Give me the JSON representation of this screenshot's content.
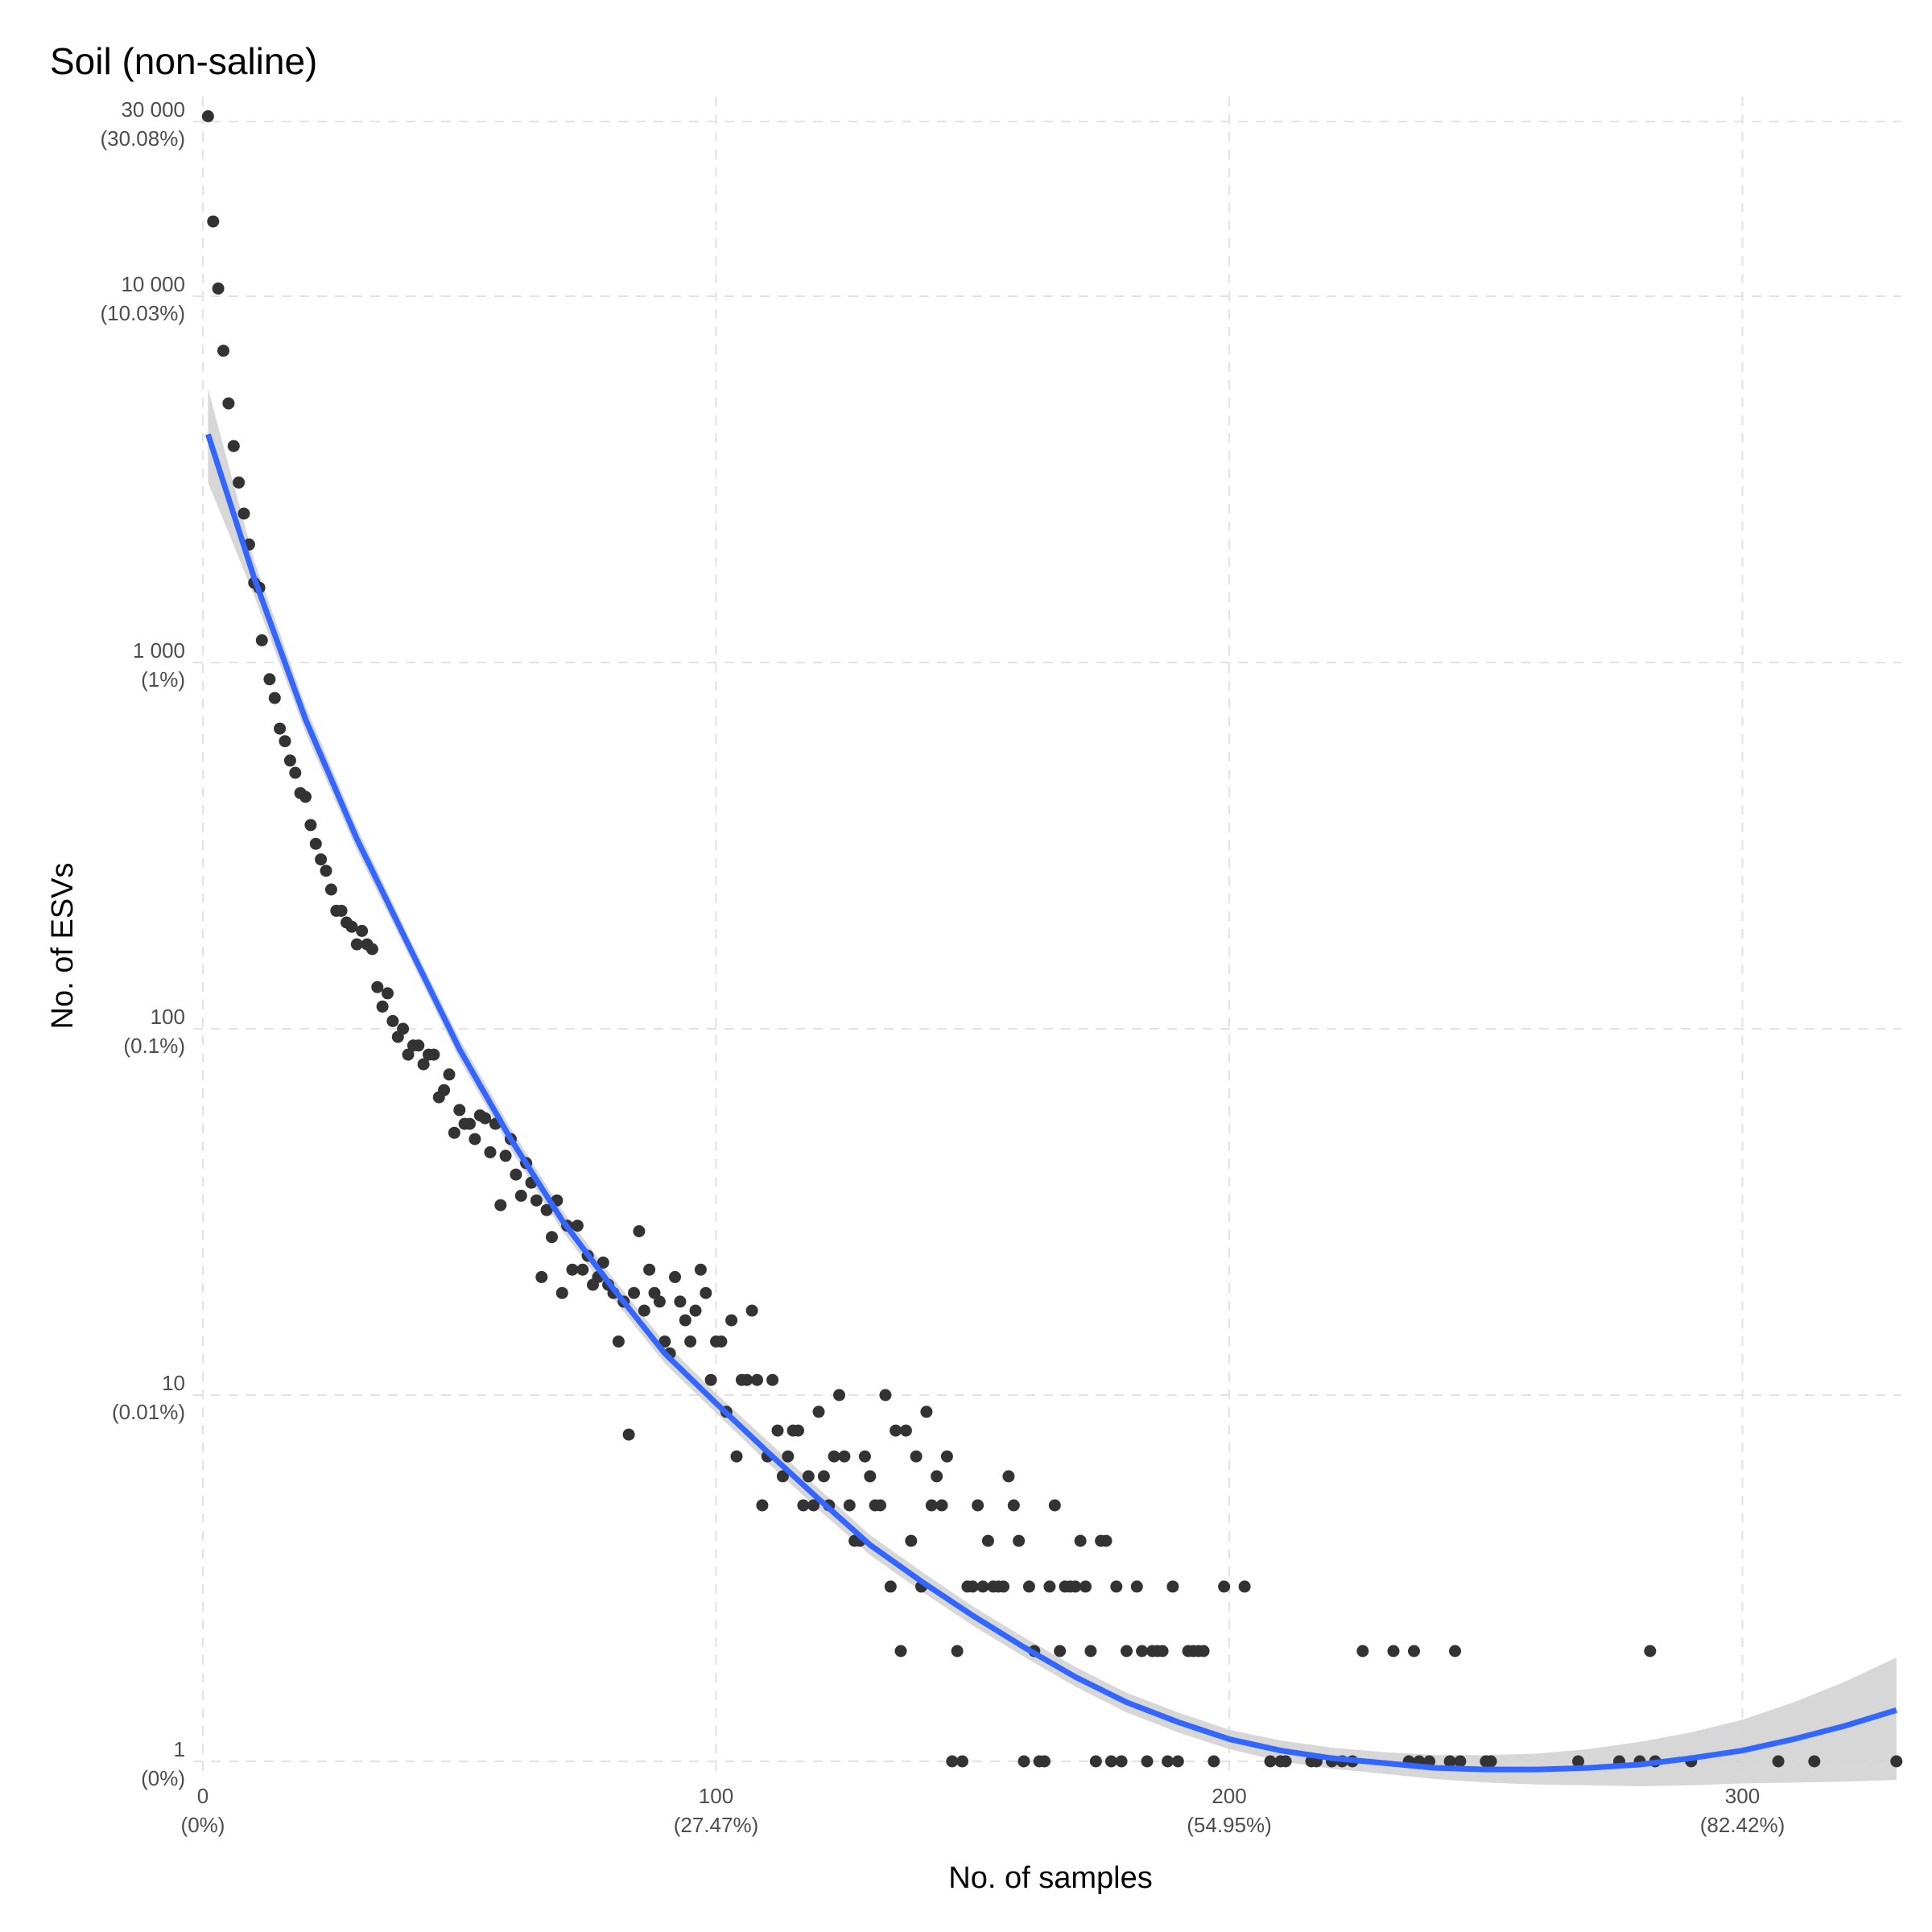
{
  "chart_data": {
    "type": "scatter",
    "title": "Soil (non-saline)",
    "xlabel": "No. of samples",
    "ylabel": "No. of ESVs",
    "y_scale": "log",
    "xlim": [
      0,
      330
    ],
    "ylim": [
      0.8,
      35000
    ],
    "grid": true,
    "colors": {
      "points": "#333333",
      "fit_line": "#3366ff",
      "confidence_band": "#d3d3d3",
      "grid": "#e2e2e2",
      "tick_text": "#4d4d4d",
      "title_text": "#000000"
    },
    "x_ticks": [
      {
        "value": 0,
        "label": "0",
        "sublabel": "(0%)"
      },
      {
        "value": 100,
        "label": "100",
        "sublabel": "(27.47%)"
      },
      {
        "value": 200,
        "label": "200",
        "sublabel": "(54.95%)"
      },
      {
        "value": 300,
        "label": "300",
        "sublabel": "(82.42%)"
      }
    ],
    "y_ticks": [
      {
        "value": 1,
        "label": "1",
        "sublabel": "(0%)"
      },
      {
        "value": 10,
        "label": "10",
        "sublabel": "(0.01%)"
      },
      {
        "value": 100,
        "label": "100",
        "sublabel": "(0.1%)"
      },
      {
        "value": 1000,
        "label": "1 000",
        "sublabel": "(1%)"
      },
      {
        "value": 10000,
        "label": "10 000",
        "sublabel": "(10.03%)"
      },
      {
        "value": 30000,
        "label": "30 000",
        "sublabel": "(30.08%)"
      }
    ],
    "points": [
      [
        1,
        31000
      ],
      [
        2,
        16000
      ],
      [
        3,
        10500
      ],
      [
        4,
        7100
      ],
      [
        5,
        5100
      ],
      [
        6,
        3900
      ],
      [
        7,
        3100
      ],
      [
        8,
        2550
      ],
      [
        9,
        2100
      ],
      [
        10,
        1650
      ],
      [
        11,
        1600
      ],
      [
        11.5,
        1150
      ],
      [
        13,
        900
      ],
      [
        14,
        800
      ],
      [
        15,
        660
      ],
      [
        16,
        610
      ],
      [
        17,
        540
      ],
      [
        18,
        500
      ],
      [
        19,
        440
      ],
      [
        20,
        430
      ],
      [
        21,
        360
      ],
      [
        22,
        320
      ],
      [
        23,
        290
      ],
      [
        24,
        270
      ],
      [
        25,
        240
      ],
      [
        26,
        210
      ],
      [
        27,
        210
      ],
      [
        28,
        195
      ],
      [
        29,
        190
      ],
      [
        30,
        170
      ],
      [
        31,
        185
      ],
      [
        32,
        170
      ],
      [
        33,
        165
      ],
      [
        34,
        130
      ],
      [
        35,
        115
      ],
      [
        36,
        125
      ],
      [
        37,
        105
      ],
      [
        38,
        95
      ],
      [
        39,
        100
      ],
      [
        40,
        85
      ],
      [
        41,
        90
      ],
      [
        42,
        90
      ],
      [
        43,
        80
      ],
      [
        44,
        85
      ],
      [
        45,
        85
      ],
      [
        46,
        65
      ],
      [
        47,
        68
      ],
      [
        48,
        75
      ],
      [
        49,
        52
      ],
      [
        50,
        60
      ],
      [
        51,
        55
      ],
      [
        52,
        55
      ],
      [
        53,
        50
      ],
      [
        54,
        58
      ],
      [
        55,
        57
      ],
      [
        56,
        46
      ],
      [
        57,
        55
      ],
      [
        58,
        33
      ],
      [
        59,
        45
      ],
      [
        60,
        50
      ],
      [
        61,
        40
      ],
      [
        62,
        35
      ],
      [
        63,
        43
      ],
      [
        64,
        38
      ],
      [
        65,
        34
      ],
      [
        66,
        21
      ],
      [
        67,
        32
      ],
      [
        68,
        27
      ],
      [
        69,
        34
      ],
      [
        70,
        19
      ],
      [
        71,
        29
      ],
      [
        72,
        22
      ],
      [
        73,
        29
      ],
      [
        74,
        22
      ],
      [
        75,
        24
      ],
      [
        76,
        20
      ],
      [
        77,
        21
      ],
      [
        78,
        23
      ],
      [
        79,
        20
      ],
      [
        80,
        19
      ],
      [
        81,
        14
      ],
      [
        82,
        18
      ],
      [
        83,
        7.8
      ],
      [
        84,
        19
      ],
      [
        85,
        28
      ],
      [
        86,
        17
      ],
      [
        87,
        22
      ],
      [
        88,
        19
      ],
      [
        89,
        18
      ],
      [
        90,
        14
      ],
      [
        91,
        13
      ],
      [
        92,
        21
      ],
      [
        93,
        18
      ],
      [
        94,
        16
      ],
      [
        95,
        14
      ],
      [
        96,
        17
      ],
      [
        97,
        22
      ],
      [
        98,
        19
      ],
      [
        99,
        11
      ],
      [
        100,
        14
      ],
      [
        101,
        14
      ],
      [
        102,
        9
      ],
      [
        103,
        16
      ],
      [
        104,
        6.8
      ],
      [
        105,
        11
      ],
      [
        106,
        11
      ],
      [
        107,
        17
      ],
      [
        108,
        11
      ],
      [
        109,
        5
      ],
      [
        110,
        6.8
      ],
      [
        111,
        11
      ],
      [
        112,
        8
      ],
      [
        113,
        6
      ],
      [
        114,
        6.8
      ],
      [
        115,
        8
      ],
      [
        116,
        8
      ],
      [
        117,
        5
      ],
      [
        118,
        6
      ],
      [
        119,
        5
      ],
      [
        120,
        9
      ],
      [
        121,
        6
      ],
      [
        122,
        5
      ],
      [
        123,
        6.8
      ],
      [
        124,
        10
      ],
      [
        125,
        6.8
      ],
      [
        126,
        5
      ],
      [
        127,
        4
      ],
      [
        128,
        4
      ],
      [
        129,
        6.8
      ],
      [
        130,
        6
      ],
      [
        131,
        5
      ],
      [
        132,
        5
      ],
      [
        133,
        10
      ],
      [
        134,
        3
      ],
      [
        135,
        8
      ],
      [
        136,
        2
      ],
      [
        137,
        8
      ],
      [
        138,
        4
      ],
      [
        139,
        6.8
      ],
      [
        140,
        3
      ],
      [
        141,
        9
      ],
      [
        142,
        5
      ],
      [
        143,
        6
      ],
      [
        144,
        5
      ],
      [
        145,
        6.8
      ],
      [
        146,
        1
      ],
      [
        147,
        2
      ],
      [
        148,
        1
      ],
      [
        149,
        3
      ],
      [
        150,
        3
      ],
      [
        151,
        5
      ],
      [
        152,
        3
      ],
      [
        153,
        4
      ],
      [
        154,
        3
      ],
      [
        155,
        3
      ],
      [
        156,
        3
      ],
      [
        157,
        6
      ],
      [
        158,
        5
      ],
      [
        159,
        4
      ],
      [
        160,
        1
      ],
      [
        161,
        3
      ],
      [
        162,
        2
      ],
      [
        163,
        1
      ],
      [
        164,
        1
      ],
      [
        165,
        3
      ],
      [
        166,
        5
      ],
      [
        167,
        2
      ],
      [
        168,
        3
      ],
      [
        169,
        3
      ],
      [
        170,
        3
      ],
      [
        171,
        4
      ],
      [
        172,
        3
      ],
      [
        173,
        2
      ],
      [
        174,
        1
      ],
      [
        175,
        4
      ],
      [
        176,
        4
      ],
      [
        177,
        1
      ],
      [
        178,
        3
      ],
      [
        179,
        1
      ],
      [
        180,
        2
      ],
      [
        182,
        3
      ],
      [
        183,
        2
      ],
      [
        184,
        1
      ],
      [
        185,
        2
      ],
      [
        186,
        2
      ],
      [
        187,
        2
      ],
      [
        188,
        1
      ],
      [
        189,
        3
      ],
      [
        190,
        1
      ],
      [
        192,
        2
      ],
      [
        193,
        2
      ],
      [
        194,
        2
      ],
      [
        195,
        2
      ],
      [
        197,
        1
      ],
      [
        199,
        3
      ],
      [
        203,
        3
      ],
      [
        208,
        1
      ],
      [
        210,
        1
      ],
      [
        211,
        1
      ],
      [
        216,
        1
      ],
      [
        217,
        1
      ],
      [
        220,
        1
      ],
      [
        222,
        1
      ],
      [
        224,
        1
      ],
      [
        226,
        2
      ],
      [
        232,
        2
      ],
      [
        235,
        1
      ],
      [
        236,
        2
      ],
      [
        237,
        1
      ],
      [
        239,
        1
      ],
      [
        243,
        1
      ],
      [
        244,
        2
      ],
      [
        245,
        1
      ],
      [
        250,
        1
      ],
      [
        251,
        1
      ],
      [
        268,
        1
      ],
      [
        276,
        1
      ],
      [
        280,
        1
      ],
      [
        282,
        2
      ],
      [
        283,
        1
      ],
      [
        290,
        1
      ],
      [
        307,
        1
      ],
      [
        314,
        1
      ],
      [
        330,
        1
      ]
    ],
    "fit_line": [
      [
        1,
        4200
      ],
      [
        10,
        1700
      ],
      [
        20,
        700
      ],
      [
        30,
        330
      ],
      [
        40,
        170
      ],
      [
        50,
        88
      ],
      [
        60,
        50
      ],
      [
        70,
        30
      ],
      [
        80,
        19.5
      ],
      [
        90,
        13
      ],
      [
        100,
        9.5
      ],
      [
        110,
        7
      ],
      [
        120,
        5.2
      ],
      [
        130,
        3.9
      ],
      [
        140,
        3.1
      ],
      [
        150,
        2.5
      ],
      [
        160,
        2.05
      ],
      [
        170,
        1.7
      ],
      [
        180,
        1.45
      ],
      [
        190,
        1.28
      ],
      [
        200,
        1.15
      ],
      [
        210,
        1.07
      ],
      [
        220,
        1.02
      ],
      [
        230,
        0.99
      ],
      [
        240,
        0.96
      ],
      [
        250,
        0.95
      ],
      [
        260,
        0.95
      ],
      [
        270,
        0.96
      ],
      [
        280,
        0.98
      ],
      [
        290,
        1.02
      ],
      [
        300,
        1.07
      ],
      [
        310,
        1.15
      ],
      [
        320,
        1.25
      ],
      [
        330,
        1.38
      ]
    ],
    "band_upper": [
      [
        1,
        5600
      ],
      [
        10,
        1900
      ],
      [
        20,
        760
      ],
      [
        30,
        355
      ],
      [
        40,
        180
      ],
      [
        50,
        94
      ],
      [
        60,
        53.5
      ],
      [
        70,
        32
      ],
      [
        80,
        20.8
      ],
      [
        90,
        13.9
      ],
      [
        100,
        10.1
      ],
      [
        110,
        7.5
      ],
      [
        120,
        5.55
      ],
      [
        130,
        4.15
      ],
      [
        140,
        3.3
      ],
      [
        150,
        2.65
      ],
      [
        160,
        2.18
      ],
      [
        170,
        1.81
      ],
      [
        180,
        1.54
      ],
      [
        190,
        1.36
      ],
      [
        200,
        1.22
      ],
      [
        210,
        1.14
      ],
      [
        220,
        1.09
      ],
      [
        230,
        1.06
      ],
      [
        240,
        1.04
      ],
      [
        250,
        1.04
      ],
      [
        260,
        1.05
      ],
      [
        270,
        1.08
      ],
      [
        280,
        1.13
      ],
      [
        290,
        1.2
      ],
      [
        300,
        1.3
      ],
      [
        310,
        1.45
      ],
      [
        320,
        1.65
      ],
      [
        330,
        1.92
      ]
    ],
    "band_lower": [
      [
        1,
        3100
      ],
      [
        10,
        1520
      ],
      [
        20,
        645
      ],
      [
        30,
        307
      ],
      [
        40,
        160
      ],
      [
        50,
        82.5
      ],
      [
        60,
        46.8
      ],
      [
        70,
        28.1
      ],
      [
        80,
        18.3
      ],
      [
        90,
        12.2
      ],
      [
        100,
        8.93
      ],
      [
        110,
        6.55
      ],
      [
        120,
        4.87
      ],
      [
        130,
        3.66
      ],
      [
        140,
        2.91
      ],
      [
        150,
        2.35
      ],
      [
        160,
        1.93
      ],
      [
        170,
        1.6
      ],
      [
        180,
        1.36
      ],
      [
        190,
        1.2
      ],
      [
        200,
        1.08
      ],
      [
        210,
        1.0
      ],
      [
        220,
        0.955
      ],
      [
        230,
        0.925
      ],
      [
        240,
        0.895
      ],
      [
        250,
        0.875
      ],
      [
        260,
        0.865
      ],
      [
        270,
        0.86
      ],
      [
        280,
        0.855
      ],
      [
        290,
        0.86
      ],
      [
        300,
        0.87
      ],
      [
        310,
        0.875
      ],
      [
        320,
        0.88
      ],
      [
        330,
        0.89
      ]
    ]
  }
}
